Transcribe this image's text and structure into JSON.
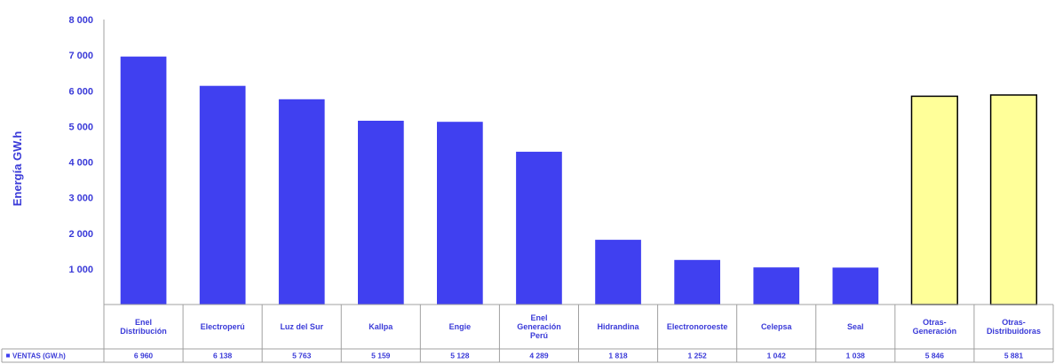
{
  "chart_data": {
    "type": "bar",
    "ylabel": "Energía GW.h",
    "ylim": [
      0,
      8000
    ],
    "yticks": [
      "1 000",
      "2 000",
      "3 000",
      "4 000",
      "5 000",
      "6 000",
      "7 000",
      "8 000"
    ],
    "categories": [
      [
        "Enel",
        "Distribución"
      ],
      [
        "Electroperú"
      ],
      [
        "Luz del Sur"
      ],
      [
        "Kallpa"
      ],
      [
        "Engie"
      ],
      [
        "Enel",
        "Generación",
        "Perú"
      ],
      [
        "Hidrandina"
      ],
      [
        "Electronoroeste"
      ],
      [
        "Celepsa"
      ],
      [
        "Seal"
      ],
      [
        "Otras-",
        "Generación"
      ],
      [
        "Otras-",
        "Distribuidoras"
      ]
    ],
    "series": [
      {
        "name": "VENTAS (GW.h)",
        "values": [
          6960,
          6138,
          5763,
          5159,
          5128,
          4289,
          1818,
          1252,
          1042,
          1038,
          5846,
          5881
        ],
        "labels": [
          "6 960",
          "6 138",
          "5 763",
          "5 159",
          "5 128",
          "4 289",
          "1 818",
          "1 252",
          "1 042",
          "1 038",
          "5 846",
          "5 881"
        ],
        "colors": [
          "#4040f0",
          "#4040f0",
          "#4040f0",
          "#4040f0",
          "#4040f0",
          "#4040f0",
          "#4040f0",
          "#4040f0",
          "#4040f0",
          "#4040f0",
          "#ffff99",
          "#ffff99"
        ]
      }
    ],
    "legend_marker_color": "#4040f0",
    "grid": false,
    "data_table": true
  }
}
